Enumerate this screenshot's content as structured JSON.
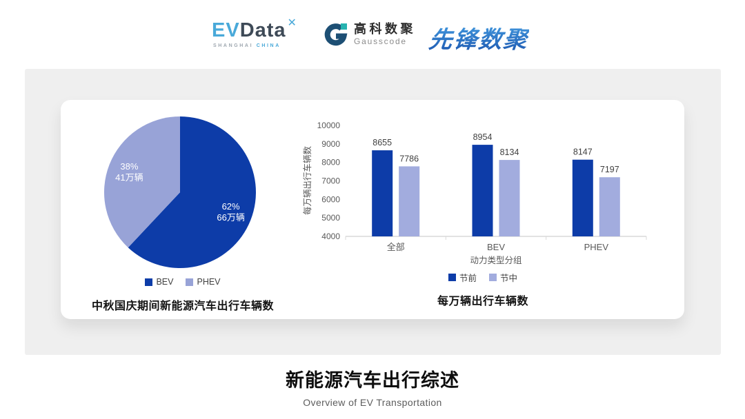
{
  "header": {
    "evdata": {
      "ev": "EV",
      "data": "Data",
      "mark": "✕",
      "sub_shanghai": "SHANGHAI",
      "sub_china": "CHINA"
    },
    "gausscode": {
      "cn": "高科数聚",
      "en": "Gausscode"
    },
    "pioneer": {
      "text": "先锋数聚"
    }
  },
  "colors": {
    "series_pre": "#0d3ca8",
    "series_mid": "#a2acde",
    "pie_bev": "#0d3ca8",
    "pie_phev": "#98a3d7",
    "panel_bg": "#efefef",
    "axis_text": "#595959",
    "axis_line": "#d9d9d9"
  },
  "chart_data": [
    {
      "type": "pie",
      "title": "中秋国庆期间新能源汽车出行车辆数",
      "slices": [
        {
          "label": "BEV",
          "percent": 62,
          "value_label": "66万辆",
          "color": "#0d3ca8"
        },
        {
          "label": "PHEV",
          "percent": 38,
          "value_label": "41万辆",
          "color": "#98a3d7"
        }
      ],
      "start_at": "top",
      "direction": "clockwise",
      "legend_position": "bottom"
    },
    {
      "type": "bar",
      "title": "每万辆出行车辆数",
      "categories": [
        "全部",
        "BEV",
        "PHEV"
      ],
      "series": [
        {
          "name": "节前",
          "color": "#0d3ca8",
          "values": [
            8655,
            8954,
            8147
          ]
        },
        {
          "name": "节中",
          "color": "#a2acde",
          "values": [
            7786,
            8134,
            7197
          ]
        }
      ],
      "xlabel": "动力类型分组",
      "ylabel": "每万辆出行车辆数",
      "ylim": [
        4000,
        10000
      ],
      "ytick_step": 1000,
      "grid": false,
      "data_labels": true,
      "legend_position": "bottom"
    }
  ],
  "footer": {
    "title": "新能源汽车出行综述",
    "subtitle": "Overview of EV Transportation"
  }
}
